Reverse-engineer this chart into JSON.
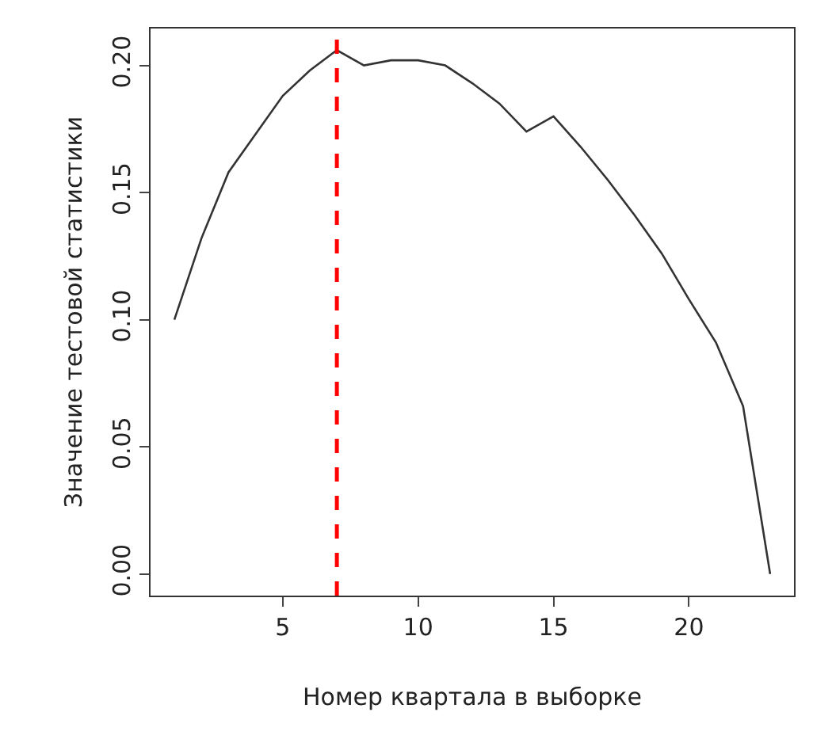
{
  "chart_data": {
    "type": "line",
    "xlabel": "Номер квартала в выборке",
    "ylabel": "Значение тестовой статистики",
    "x": [
      1,
      2,
      3,
      4,
      5,
      6,
      7,
      8,
      9,
      10,
      11,
      12,
      13,
      14,
      15,
      16,
      17,
      18,
      19,
      20,
      21,
      22,
      23
    ],
    "series": [
      {
        "color": "#333333",
        "values": [
          0.1,
          0.132,
          0.158,
          0.173,
          0.188,
          0.198,
          0.206,
          0.2,
          0.202,
          0.202,
          0.2,
          0.193,
          0.185,
          0.174,
          0.18,
          0.168,
          0.155,
          0.141,
          0.126,
          0.108,
          0.091,
          0.066,
          0.0
        ]
      }
    ],
    "xlim": [
      0.12,
      23.88
    ],
    "xticks": [
      5,
      10,
      15,
      20
    ],
    "ylim": [
      -0.0085,
      0.2145
    ],
    "yticks": [
      {
        "value": 0,
        "label": "0.00"
      },
      {
        "value": 0.05,
        "label": "0.05"
      },
      {
        "value": 0.1,
        "label": "0.10"
      },
      {
        "value": 0.15,
        "label": "0.15"
      },
      {
        "value": 0.2,
        "label": "0.20"
      }
    ],
    "ref_lines": [
      {
        "axis": "x",
        "value": 7,
        "color": "#ff0000",
        "line_style": "dashed"
      }
    ],
    "marker": "none",
    "line_style": "solid"
  }
}
